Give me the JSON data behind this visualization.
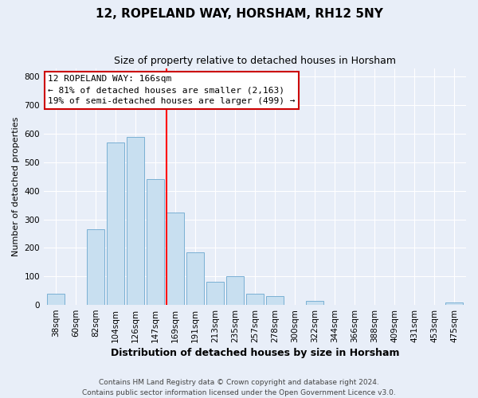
{
  "title": "12, ROPELAND WAY, HORSHAM, RH12 5NY",
  "subtitle": "Size of property relative to detached houses in Horsham",
  "xlabel": "Distribution of detached houses by size in Horsham",
  "ylabel": "Number of detached properties",
  "bar_labels": [
    "38sqm",
    "60sqm",
    "82sqm",
    "104sqm",
    "126sqm",
    "147sqm",
    "169sqm",
    "191sqm",
    "213sqm",
    "235sqm",
    "257sqm",
    "278sqm",
    "300sqm",
    "322sqm",
    "344sqm",
    "366sqm",
    "388sqm",
    "409sqm",
    "431sqm",
    "453sqm",
    "475sqm"
  ],
  "bar_values": [
    38,
    0,
    265,
    570,
    590,
    440,
    325,
    185,
    80,
    100,
    38,
    30,
    0,
    13,
    0,
    0,
    0,
    0,
    0,
    0,
    8
  ],
  "bar_color": "#c8dff0",
  "bar_edge_color": "#7ab0d4",
  "vline_x_index": 6,
  "vline_color": "red",
  "ylim": [
    0,
    830
  ],
  "yticks": [
    0,
    100,
    200,
    300,
    400,
    500,
    600,
    700,
    800
  ],
  "annotation_title": "12 ROPELAND WAY: 166sqm",
  "annotation_line1": "← 81% of detached houses are smaller (2,163)",
  "annotation_line2": "19% of semi-detached houses are larger (499) →",
  "annotation_box_facecolor": "#ffffff",
  "annotation_box_edgecolor": "#cc0000",
  "footer_line1": "Contains HM Land Registry data © Crown copyright and database right 2024.",
  "footer_line2": "Contains public sector information licensed under the Open Government Licence v3.0.",
  "bg_color": "#e8eef8",
  "plot_bg_color": "#e8eef8",
  "grid_color": "#ffffff",
  "title_fontsize": 11,
  "subtitle_fontsize": 9,
  "xlabel_fontsize": 9,
  "ylabel_fontsize": 8,
  "tick_fontsize": 7.5,
  "footer_fontsize": 6.5,
  "ann_fontsize": 8
}
